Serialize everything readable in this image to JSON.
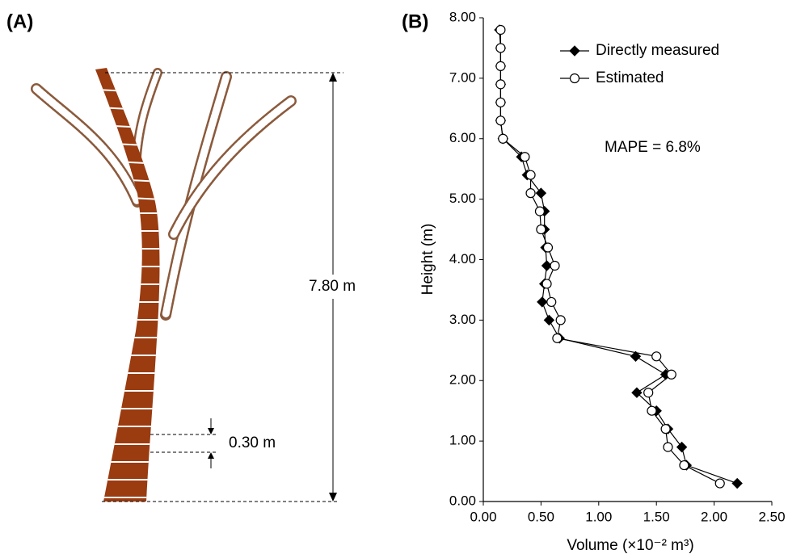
{
  "panel_a": {
    "label": "(A)",
    "height_label": "7.80 m",
    "segment_label": "0.30 m"
  },
  "chart_data": {
    "type": "line",
    "panel_label": "(B)",
    "x_label": "Volume (×10⁻² m³)",
    "y_label": "Height (m)",
    "annotation": "MAPE = 6.8%",
    "xlim": [
      0,
      2.5
    ],
    "xticks": [
      {
        "value": 0,
        "label": "0.00"
      },
      {
        "value": 0.5,
        "label": "0.50"
      },
      {
        "value": 1,
        "label": "1.00"
      },
      {
        "value": 1.5,
        "label": "1.50"
      },
      {
        "value": 2,
        "label": "2.00"
      },
      {
        "value": 2.5,
        "label": "2.50"
      }
    ],
    "ylim": [
      0,
      8
    ],
    "yticks": [
      {
        "value": 0,
        "label": "0.00"
      },
      {
        "value": 1,
        "label": "1.00"
      },
      {
        "value": 2,
        "label": "2.00"
      },
      {
        "value": 3,
        "label": "3.00"
      },
      {
        "value": 4,
        "label": "4.00"
      },
      {
        "value": 5,
        "label": "5.00"
      },
      {
        "value": 6,
        "label": "6.00"
      },
      {
        "value": 7,
        "label": "7.00"
      },
      {
        "value": 8,
        "label": "8.00"
      }
    ],
    "legend": "upper-left",
    "series": [
      {
        "name": "Directly measured",
        "color": "#000000",
        "marker": "diamond",
        "x": [
          2.2,
          1.76,
          1.72,
          1.6,
          1.5,
          1.33,
          1.58,
          1.32,
          0.66,
          0.57,
          0.51,
          0.53,
          0.55,
          0.54,
          0.53,
          0.53,
          0.5,
          0.38,
          0.33,
          0.17,
          0.15,
          0.15,
          0.15,
          0.15,
          0.15,
          0.14
        ],
        "y": [
          0.3,
          0.6,
          0.9,
          1.2,
          1.5,
          1.8,
          2.1,
          2.4,
          2.7,
          3.0,
          3.3,
          3.6,
          3.9,
          4.2,
          4.5,
          4.8,
          5.1,
          5.4,
          5.7,
          6.0,
          6.3,
          6.6,
          6.9,
          7.2,
          7.5,
          7.8
        ]
      },
      {
        "name": "Estimated",
        "color": "#000000",
        "marker": "circle",
        "x": [
          2.05,
          1.74,
          1.6,
          1.58,
          1.46,
          1.43,
          1.63,
          1.5,
          0.64,
          0.67,
          0.59,
          0.55,
          0.62,
          0.56,
          0.5,
          0.49,
          0.41,
          0.41,
          0.36,
          0.17,
          0.15,
          0.15,
          0.15,
          0.15,
          0.15,
          0.15
        ],
        "y": [
          0.3,
          0.6,
          0.9,
          1.2,
          1.5,
          1.8,
          2.1,
          2.4,
          2.7,
          3.0,
          3.3,
          3.6,
          3.9,
          4.2,
          4.5,
          4.8,
          5.1,
          5.4,
          5.7,
          6.0,
          6.3,
          6.6,
          6.9,
          7.2,
          7.5,
          7.8
        ]
      }
    ]
  }
}
